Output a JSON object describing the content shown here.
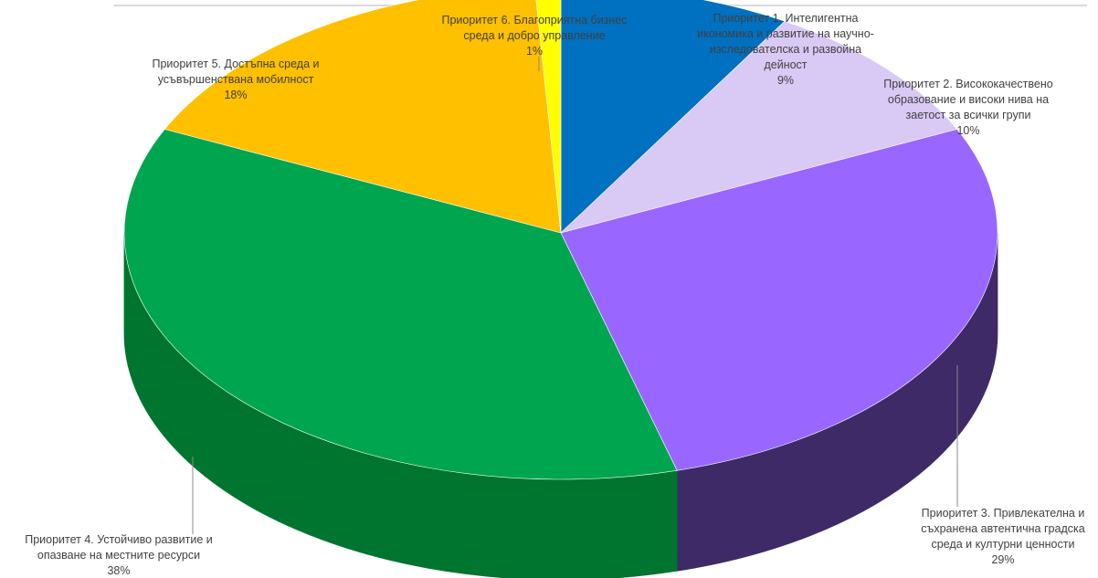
{
  "chart_data": {
    "type": "pie",
    "style": "3d",
    "start_angle_deg": 0,
    "direction": "clockwise",
    "slices": [
      {
        "label_lines": [
          "Приоритет 1. Интелигентна",
          "икономика и развитие на научно-",
          "изследователска и развойна",
          "дейност",
          "9%"
        ],
        "value": 9,
        "color": "#0070c0",
        "side_color": "#004a80"
      },
      {
        "label_lines": [
          "Приоритет 2. Висококачествено",
          "образование и високи нива на",
          "заетост за всички групи",
          "10%"
        ],
        "value": 10,
        "color": "#d9c9f5",
        "side_color": "#9c8fb8"
      },
      {
        "label_lines": [
          "Приоритет 3. Привлекателна и",
          "съхранена автентична градска",
          "среда и културни ценности",
          "29%"
        ],
        "value": 29,
        "color": "#9966ff",
        "side_color": "#3d2a66"
      },
      {
        "label_lines": [
          "Приоритет 4. Устойчиво развитие и",
          "опазване на местните ресурси",
          "38%"
        ],
        "value": 38,
        "color": "#00a550",
        "side_color": "#00752f"
      },
      {
        "label_lines": [
          "Приоритет 5. Достъпна среда и",
          "усъвършенствана мобилност",
          "18%"
        ],
        "value": 18,
        "color": "#ffc000",
        "side_color": "#b38600"
      },
      {
        "label_lines": [
          "Приоритет 6. Благоприятна бизнес",
          "среда и добро управление",
          "1%"
        ],
        "value": 1,
        "color": "#ffff00",
        "side_color": "#b3b300"
      }
    ],
    "legend": "none",
    "data_labels": "outside-with-leader-lines"
  }
}
